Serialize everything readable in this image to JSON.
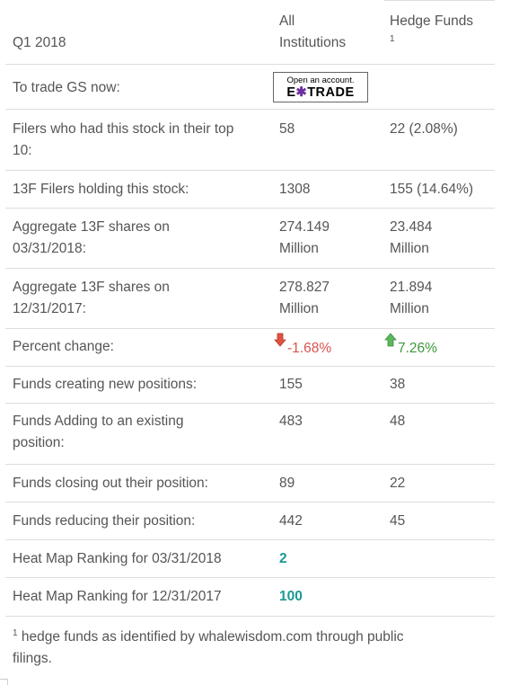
{
  "header": {
    "period": "Q1 2018",
    "col_all_line1": "All",
    "col_all_line2": "Institutions",
    "col_hedge": "Hedge Funds",
    "col_hedge_sup": "1"
  },
  "trade": {
    "label": "To trade GS now:",
    "badge_line1": "Open an account.",
    "badge_line2_a": "E",
    "badge_line2_star": "✱",
    "badge_line2_b": "TRADE"
  },
  "rows": [
    {
      "label_l1": "Filers who had this stock in their top",
      "label_l2": "10:",
      "all": "58",
      "hedge": "22 (2.08%)"
    },
    {
      "label_l1": "13F Filers holding this stock:",
      "all": "1308",
      "hedge": "155 (14.64%)"
    },
    {
      "label_l1": "Aggregate 13F shares on",
      "label_l2": "03/31/2018:",
      "all_l1": "274.149",
      "all_l2": "Million",
      "hedge_l1": "23.484",
      "hedge_l2": "Million"
    },
    {
      "label_l1": "Aggregate 13F shares on",
      "label_l2": "12/31/2017:",
      "all_l1": "278.827",
      "all_l2": "Million",
      "hedge_l1": "21.894",
      "hedge_l2": "Million"
    },
    {
      "label_l1": "Percent change:",
      "all": "-1.68%",
      "hedge": "7.26%"
    },
    {
      "label_l1": "Funds creating new positions:",
      "all": "155",
      "hedge": "38"
    },
    {
      "label_l1": "Funds Adding to an existing",
      "label_l2": "position:",
      "all": "483",
      "hedge": "48"
    },
    {
      "label_l1": "Funds closing out their position:",
      "all": "89",
      "hedge": "22"
    },
    {
      "label_l1": "Funds reducing their position:",
      "all": "442",
      "hedge": "45"
    },
    {
      "label_l1": "Heat Map Ranking for 03/31/2018",
      "all": "2"
    },
    {
      "label_l1": "Heat Map Ranking for 12/31/2017",
      "all": "100"
    }
  ],
  "footnote": {
    "sup": "1",
    "line1": "hedge funds as identified by whalewisdom.com through public",
    "line2": "filings."
  },
  "colors": {
    "negative": "#d9534f",
    "positive": "#3c9a3c",
    "ranking": "#1a9a94",
    "text": "#555555"
  }
}
